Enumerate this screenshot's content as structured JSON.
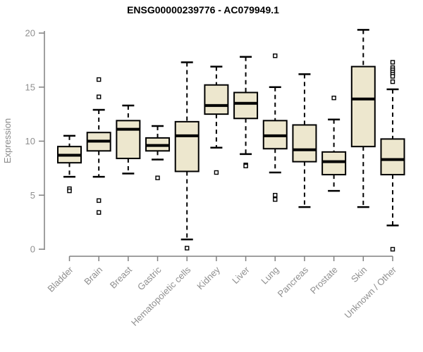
{
  "title": "ENSG00000239776 - AC079949.1",
  "colors": {
    "background": "#ffffff",
    "box_fill": "#ede7ce",
    "box_stroke": "#000000",
    "median": "#000000",
    "whisker": "#000000",
    "outlier_stroke": "#000000",
    "outlier_fill": "#ffffff",
    "axis_line": "#808080",
    "axis_text": "#8f8f8f",
    "title_text": "#000000"
  },
  "chart_data": {
    "type": "boxplot",
    "title": "ENSG00000239776 - AC079949.1",
    "xlabel": "",
    "ylabel": "Expression",
    "ylim": [
      0,
      20
    ],
    "yticks": [
      0,
      5,
      10,
      15,
      20
    ],
    "grid": false,
    "legend": "none",
    "categories": [
      "Bladder",
      "Brain",
      "Breast",
      "Gastric",
      "Hematopoietic cells",
      "Kidney",
      "Liver",
      "Lung",
      "Pancreas",
      "Prostate",
      "Skin",
      "Unknown / Other"
    ],
    "series": [
      {
        "name": "Bladder",
        "whisker_low": 6.7,
        "q1": 8.0,
        "median": 8.7,
        "q3": 9.5,
        "whisker_high": 10.5,
        "outliers": [
          5.6,
          5.4
        ]
      },
      {
        "name": "Brain",
        "whisker_low": 6.7,
        "q1": 9.1,
        "median": 10.0,
        "q3": 10.8,
        "whisker_high": 12.9,
        "outliers": [
          15.7,
          14.1,
          4.5,
          3.4
        ]
      },
      {
        "name": "Breast",
        "whisker_low": 7.0,
        "q1": 8.4,
        "median": 11.1,
        "q3": 11.9,
        "whisker_high": 13.3,
        "outliers": []
      },
      {
        "name": "Gastric",
        "whisker_low": 8.3,
        "q1": 9.1,
        "median": 9.6,
        "q3": 10.3,
        "whisker_high": 11.4,
        "outliers": [
          6.6
        ]
      },
      {
        "name": "Hematopoietic cells",
        "whisker_low": 0.9,
        "q1": 7.2,
        "median": 10.5,
        "q3": 11.8,
        "whisker_high": 17.3,
        "outliers": [
          0.1
        ]
      },
      {
        "name": "Kidney",
        "whisker_low": 9.4,
        "q1": 12.5,
        "median": 13.3,
        "q3": 15.2,
        "whisker_high": 16.9,
        "outliers": [
          7.1
        ]
      },
      {
        "name": "Liver",
        "whisker_low": 8.8,
        "q1": 12.1,
        "median": 13.5,
        "q3": 14.5,
        "whisker_high": 17.8,
        "outliers": [
          7.8,
          7.7
        ]
      },
      {
        "name": "Lung",
        "whisker_low": 7.1,
        "q1": 9.3,
        "median": 10.5,
        "q3": 11.9,
        "whisker_high": 15.0,
        "outliers": [
          17.9,
          5.0,
          4.6
        ]
      },
      {
        "name": "Pancreas",
        "whisker_low": 3.9,
        "q1": 8.1,
        "median": 9.2,
        "q3": 11.5,
        "whisker_high": 16.2,
        "outliers": []
      },
      {
        "name": "Prostate",
        "whisker_low": 5.4,
        "q1": 6.9,
        "median": 8.1,
        "q3": 9.0,
        "whisker_high": 12.0,
        "outliers": [
          14.0
        ]
      },
      {
        "name": "Skin",
        "whisker_low": 3.9,
        "q1": 9.5,
        "median": 13.9,
        "q3": 16.9,
        "whisker_high": 20.3,
        "outliers": []
      },
      {
        "name": "Unknown / Other",
        "whisker_low": 2.2,
        "q1": 6.9,
        "median": 8.3,
        "q3": 10.2,
        "whisker_high": 14.8,
        "outliers": [
          17.3,
          16.8,
          16.6,
          16.4,
          16.2,
          16.0,
          15.5,
          0.0
        ]
      }
    ]
  }
}
